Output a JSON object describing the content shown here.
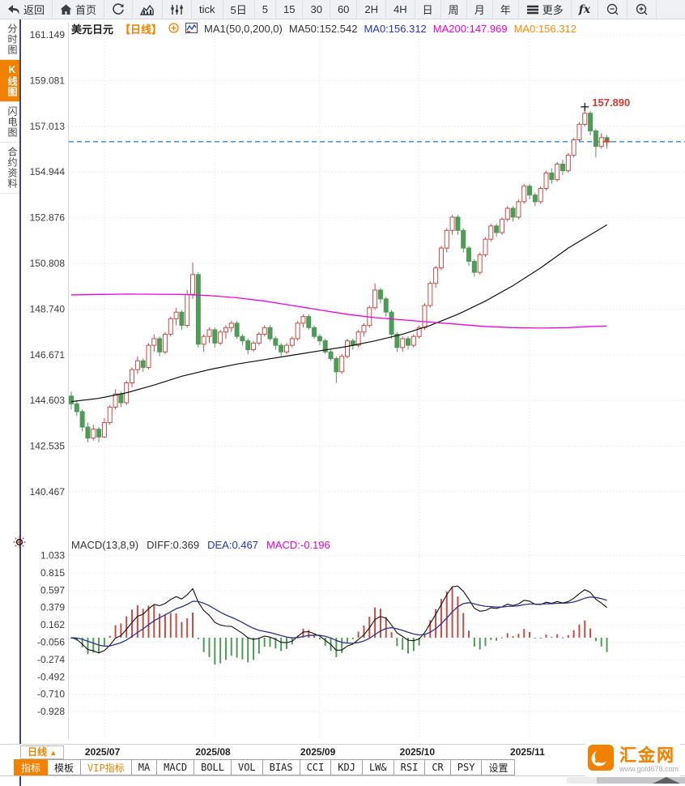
{
  "toolbar": {
    "items": [
      {
        "name": "back-button",
        "icon": "back-icon",
        "label": "返回"
      },
      {
        "name": "home-button",
        "icon": "home-icon",
        "label": "首页"
      },
      {
        "name": "refresh-button",
        "icon": "refresh-icon",
        "label": ""
      },
      {
        "name": "chart-type-area-button",
        "icon": "area-chart-icon",
        "label": ""
      },
      {
        "name": "chart-type-candle-button",
        "icon": "sliders-icon",
        "label": ""
      },
      {
        "name": "interval-tick-button",
        "label": "tick"
      },
      {
        "name": "interval-5d-button",
        "label": "5日"
      },
      {
        "name": "interval-5-button",
        "label": "5"
      },
      {
        "name": "interval-15-button",
        "label": "15"
      },
      {
        "name": "interval-30-button",
        "label": "30"
      },
      {
        "name": "interval-60-button",
        "label": "60"
      },
      {
        "name": "interval-2h-button",
        "label": "2H"
      },
      {
        "name": "interval-4h-button",
        "label": "4H"
      },
      {
        "name": "interval-day-button",
        "label": "日"
      },
      {
        "name": "interval-week-button",
        "label": "周"
      },
      {
        "name": "interval-month-button",
        "label": "月"
      },
      {
        "name": "interval-year-button",
        "label": "年"
      },
      {
        "name": "more-button",
        "icon": "menu-icon",
        "label": "更多"
      },
      {
        "name": "fx-indicator-button",
        "label": "fx",
        "cls": "fx"
      },
      {
        "name": "zoom-out-button",
        "icon": "zoom-out-icon",
        "label": ""
      },
      {
        "name": "zoom-in-button",
        "icon": "zoom-in-icon",
        "label": ""
      }
    ]
  },
  "sidebar": {
    "tabs": [
      {
        "name": "sidebar-tab-time-share",
        "label": "分时图",
        "active": false
      },
      {
        "name": "sidebar-tab-kline",
        "label": "K线图",
        "active": true
      },
      {
        "name": "sidebar-tab-lightning",
        "label": "闪电图",
        "active": false
      },
      {
        "name": "sidebar-tab-contract-info",
        "label": "合约资料",
        "active": false
      }
    ]
  },
  "chart_header": {
    "symbol": "美元日元",
    "period_tag": "【日线】",
    "ma_config": "MA1(50,0,200,0)",
    "ma50": "MA50:152.542",
    "ma0_blue": "MA0:156.312",
    "ma200": "MA200:147.969",
    "ma0_orange": "MA0:156.312"
  },
  "macd_header": {
    "title": "MACD(13,8,9)",
    "diff": "DIFF:0.369",
    "dea": "DEA:0.467",
    "macd": "MACD:-0.196"
  },
  "bottom": {
    "period": "日线",
    "period_arrow": "▲",
    "tabs": [
      {
        "name": "tab-indicator",
        "label": "指标",
        "style": "active"
      },
      {
        "name": "tab-template",
        "label": "模板",
        "style": ""
      },
      {
        "name": "tab-vip-indicator",
        "label": "VIP指标",
        "style": "vip"
      },
      {
        "name": "tab-ma",
        "label": "MA",
        "style": ""
      },
      {
        "name": "tab-macd",
        "label": "MACD",
        "style": ""
      },
      {
        "name": "tab-boll",
        "label": "BOLL",
        "style": ""
      },
      {
        "name": "tab-vol",
        "label": "VOL",
        "style": ""
      },
      {
        "name": "tab-bias",
        "label": "BIAS",
        "style": ""
      },
      {
        "name": "tab-cci",
        "label": "CCI",
        "style": ""
      },
      {
        "name": "tab-kdj",
        "label": "KDJ",
        "style": ""
      },
      {
        "name": "tab-lw",
        "label": "LW&",
        "style": ""
      },
      {
        "name": "tab-rsi",
        "label": "RSI",
        "style": ""
      },
      {
        "name": "tab-cr",
        "label": "CR",
        "style": ""
      },
      {
        "name": "tab-psy",
        "label": "PSY",
        "style": ""
      },
      {
        "name": "tab-settings",
        "label": "设置",
        "style": ""
      }
    ]
  },
  "logo": {
    "name": "汇金网",
    "site": "www.gold678.com"
  },
  "colors": {
    "up": "#c84b44",
    "down": "#4f9b58",
    "ma50": "#111111",
    "ma200": "#ee00ee",
    "price_line": "#1f7ad0",
    "diff": "#111111",
    "dea": "#27348b",
    "accent": "#f28100",
    "annotation": "#d43a36",
    "grid": "#e0e2e8"
  },
  "chart_data": {
    "type": "candlestick",
    "title": "美元日元 日线 (USD/JPY daily)",
    "y_axis_labels": [
      "161.149",
      "159.081",
      "157.013",
      "154.944",
      "152.876",
      "150.808",
      "148.740",
      "146.671",
      "144.603",
      "142.535",
      "140.467"
    ],
    "ylim": [
      140.467,
      161.149
    ],
    "x_axis_labels": [
      "2025/07",
      "2025/08",
      "2025/09",
      "2025/10",
      "2025/11"
    ],
    "month_start_indices": [
      6,
      26,
      45,
      63,
      83
    ],
    "current_price": 156.312,
    "peak_annotation": {
      "text": "157.890",
      "value": 157.89,
      "index": 93
    },
    "candles": [
      [
        144.8,
        145.0,
        144.2,
        144.45
      ],
      [
        144.45,
        144.6,
        143.9,
        144.1
      ],
      [
        144.1,
        144.2,
        143.2,
        143.4
      ],
      [
        143.4,
        143.6,
        142.7,
        142.9
      ],
      [
        142.9,
        143.5,
        142.8,
        143.3
      ],
      [
        143.3,
        143.4,
        142.7,
        142.95
      ],
      [
        142.95,
        143.8,
        142.9,
        143.6
      ],
      [
        143.6,
        144.4,
        143.5,
        144.3
      ],
      [
        144.3,
        145.1,
        144.2,
        144.9
      ],
      [
        144.9,
        145.0,
        144.3,
        144.5
      ],
      [
        144.5,
        145.5,
        144.4,
        145.4
      ],
      [
        145.4,
        146.1,
        145.2,
        146.0
      ],
      [
        146.0,
        146.6,
        145.8,
        146.4
      ],
      [
        146.4,
        146.5,
        145.9,
        146.1
      ],
      [
        146.1,
        147.2,
        146.0,
        147.1
      ],
      [
        147.1,
        147.6,
        146.8,
        147.4
      ],
      [
        147.4,
        147.5,
        146.6,
        146.8
      ],
      [
        146.8,
        147.7,
        146.7,
        147.6
      ],
      [
        147.6,
        148.4,
        147.5,
        148.3
      ],
      [
        148.3,
        148.8,
        148.0,
        148.6
      ],
      [
        148.6,
        148.7,
        147.8,
        148.0
      ],
      [
        148.0,
        149.6,
        147.9,
        149.4
      ],
      [
        149.4,
        150.85,
        149.2,
        150.3
      ],
      [
        150.3,
        150.4,
        147.0,
        147.15
      ],
      [
        147.15,
        147.6,
        146.8,
        147.5
      ],
      [
        147.5,
        147.9,
        147.2,
        147.8
      ],
      [
        147.8,
        147.9,
        147.0,
        147.2
      ],
      [
        147.2,
        147.8,
        147.1,
        147.7
      ],
      [
        147.7,
        148.0,
        147.4,
        147.9
      ],
      [
        147.9,
        148.2,
        147.7,
        148.1
      ],
      [
        148.1,
        148.2,
        147.4,
        147.5
      ],
      [
        147.5,
        147.6,
        147.1,
        147.3
      ],
      [
        147.3,
        147.4,
        146.7,
        146.9
      ],
      [
        146.9,
        147.3,
        146.8,
        147.2
      ],
      [
        147.2,
        147.7,
        147.1,
        147.6
      ],
      [
        147.6,
        148.0,
        147.5,
        147.9
      ],
      [
        147.9,
        148.0,
        147.3,
        147.4
      ],
      [
        147.4,
        147.5,
        146.9,
        147.1
      ],
      [
        147.1,
        147.2,
        146.6,
        146.8
      ],
      [
        146.8,
        147.2,
        146.7,
        147.1
      ],
      [
        147.1,
        147.5,
        147.0,
        147.4
      ],
      [
        147.4,
        148.2,
        147.3,
        148.1
      ],
      [
        148.1,
        148.5,
        147.9,
        148.4
      ],
      [
        148.4,
        148.5,
        147.8,
        147.9
      ],
      [
        147.9,
        148.0,
        147.4,
        147.5
      ],
      [
        147.5,
        147.6,
        147.1,
        147.3
      ],
      [
        147.3,
        147.4,
        146.7,
        146.8
      ],
      [
        146.8,
        146.9,
        146.4,
        146.5
      ],
      [
        146.5,
        146.6,
        145.4,
        145.9
      ],
      [
        145.9,
        146.7,
        145.8,
        146.6
      ],
      [
        146.6,
        147.4,
        146.5,
        147.3
      ],
      [
        147.3,
        147.4,
        146.9,
        147.1
      ],
      [
        147.1,
        147.8,
        147.0,
        147.7
      ],
      [
        147.7,
        148.1,
        147.5,
        148.0
      ],
      [
        148.0,
        148.9,
        147.9,
        148.8
      ],
      [
        148.8,
        149.9,
        148.7,
        149.6
      ],
      [
        149.6,
        149.7,
        149.0,
        149.2
      ],
      [
        149.2,
        149.3,
        148.4,
        148.6
      ],
      [
        148.6,
        148.7,
        147.4,
        147.6
      ],
      [
        147.6,
        147.7,
        146.8,
        147.0
      ],
      [
        147.0,
        147.5,
        146.8,
        147.4
      ],
      [
        147.4,
        147.5,
        146.9,
        147.1
      ],
      [
        147.1,
        147.6,
        147.0,
        147.5
      ],
      [
        147.5,
        148.0,
        147.4,
        147.9
      ],
      [
        147.9,
        149.0,
        147.8,
        148.9
      ],
      [
        148.9,
        150.0,
        148.8,
        149.9
      ],
      [
        149.9,
        150.7,
        149.7,
        150.6
      ],
      [
        150.6,
        151.6,
        150.5,
        151.5
      ],
      [
        151.5,
        152.4,
        151.3,
        152.3
      ],
      [
        152.3,
        153.0,
        152.1,
        152.9
      ],
      [
        152.9,
        153.0,
        152.1,
        152.3
      ],
      [
        152.3,
        152.4,
        151.3,
        151.5
      ],
      [
        151.5,
        151.6,
        150.7,
        150.9
      ],
      [
        150.9,
        151.0,
        150.2,
        150.4
      ],
      [
        150.4,
        151.3,
        150.3,
        151.2
      ],
      [
        151.2,
        152.0,
        151.1,
        151.9
      ],
      [
        151.9,
        152.6,
        151.8,
        152.5
      ],
      [
        152.5,
        152.6,
        152.0,
        152.2
      ],
      [
        152.2,
        152.9,
        152.1,
        152.8
      ],
      [
        152.8,
        153.4,
        152.7,
        153.3
      ],
      [
        153.3,
        153.4,
        152.7,
        152.9
      ],
      [
        152.9,
        153.7,
        152.8,
        153.6
      ],
      [
        153.6,
        154.4,
        153.5,
        154.3
      ],
      [
        154.3,
        154.4,
        153.7,
        153.9
      ],
      [
        153.9,
        154.0,
        153.4,
        153.6
      ],
      [
        153.6,
        154.3,
        153.5,
        154.2
      ],
      [
        154.2,
        155.0,
        154.1,
        154.9
      ],
      [
        154.9,
        155.1,
        154.4,
        154.6
      ],
      [
        154.6,
        155.4,
        154.5,
        155.3
      ],
      [
        155.3,
        155.5,
        154.8,
        155.0
      ],
      [
        155.0,
        155.8,
        154.9,
        155.7
      ],
      [
        155.7,
        156.5,
        155.6,
        156.4
      ],
      [
        156.4,
        157.2,
        156.3,
        157.1
      ],
      [
        157.1,
        157.89,
        157.0,
        157.6
      ],
      [
        157.6,
        157.7,
        156.6,
        156.8
      ],
      [
        156.8,
        156.9,
        155.6,
        156.1
      ],
      [
        156.1,
        156.7,
        156.0,
        156.5
      ],
      [
        156.5,
        156.6,
        156.0,
        156.31
      ]
    ],
    "ma50_points": [
      [
        0,
        144.55
      ],
      [
        5,
        144.7
      ],
      [
        10,
        144.95
      ],
      [
        15,
        145.3
      ],
      [
        20,
        145.7
      ],
      [
        25,
        146.0
      ],
      [
        30,
        146.25
      ],
      [
        35,
        146.45
      ],
      [
        40,
        146.65
      ],
      [
        45,
        146.85
      ],
      [
        50,
        147.05
      ],
      [
        55,
        147.3
      ],
      [
        60,
        147.6
      ],
      [
        65,
        148.0
      ],
      [
        70,
        148.5
      ],
      [
        75,
        149.1
      ],
      [
        80,
        149.8
      ],
      [
        85,
        150.6
      ],
      [
        90,
        151.5
      ],
      [
        94,
        152.1
      ],
      [
        97,
        152.55
      ]
    ],
    "ma200_points": [
      [
        0,
        149.38
      ],
      [
        10,
        149.42
      ],
      [
        20,
        149.4
      ],
      [
        25,
        149.35
      ],
      [
        30,
        149.25
      ],
      [
        35,
        149.1
      ],
      [
        40,
        148.9
      ],
      [
        45,
        148.7
      ],
      [
        50,
        148.5
      ],
      [
        55,
        148.35
      ],
      [
        60,
        148.25
      ],
      [
        65,
        148.15
      ],
      [
        70,
        148.05
      ],
      [
        75,
        147.95
      ],
      [
        80,
        147.9
      ],
      [
        85,
        147.88
      ],
      [
        90,
        147.9
      ],
      [
        94,
        147.95
      ],
      [
        97,
        147.97
      ]
    ],
    "macd_panel": {
      "params": [
        13,
        8,
        9
      ],
      "y_axis_labels": [
        "1.033",
        "0.815",
        "0.597",
        "0.379",
        "0.162",
        "-0.056",
        "-0.274",
        "-0.492",
        "-0.710",
        "-0.928"
      ],
      "ylim": [
        -0.928,
        1.033
      ],
      "last_values": {
        "diff": 0.369,
        "dea": 0.467,
        "macd": -0.196
      }
    }
  }
}
